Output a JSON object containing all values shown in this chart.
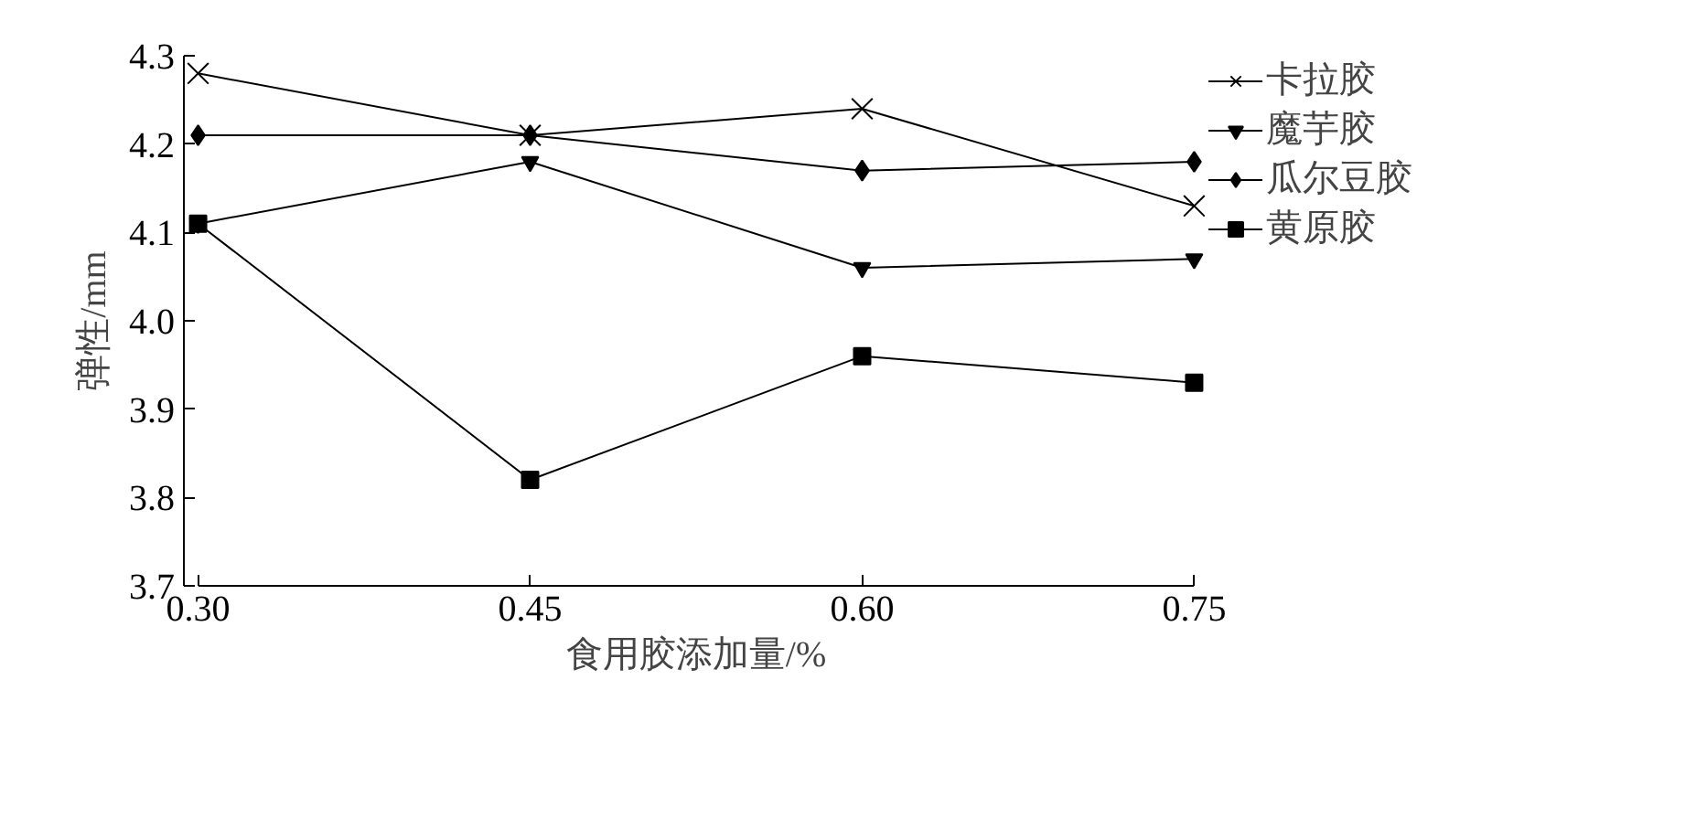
{
  "chart_data": {
    "type": "line",
    "xlabel": "食用胶添加量/%",
    "ylabel": "弹性/mm",
    "x": [
      0.3,
      0.45,
      0.6,
      0.75
    ],
    "xlim": [
      0.3,
      0.75
    ],
    "xticks": [
      {
        "value": 0.3,
        "label": "0.30"
      },
      0.45,
      {
        "value": 0.6,
        "label": "0.60"
      },
      0.75
    ],
    "ylim": [
      3.7,
      4.3
    ],
    "yticks": [
      3.7,
      3.8,
      3.9,
      {
        "value": 4.0,
        "label": "4.0"
      },
      4.1,
      4.2,
      4.3
    ],
    "grid": false,
    "legend": "right",
    "line_style": "solid",
    "series": [
      {
        "name": "卡拉胶",
        "color": "#000000",
        "marker": "cross",
        "values": [
          4.28,
          4.21,
          4.24,
          4.13
        ]
      },
      {
        "name": "魔芋胶",
        "color": "#000000",
        "marker": "triangle",
        "values": [
          4.11,
          4.18,
          4.06,
          4.07
        ]
      },
      {
        "name": "瓜尔豆胶",
        "color": "#000000",
        "marker": "diamond",
        "values": [
          4.21,
          4.21,
          4.17,
          4.18
        ]
      },
      {
        "name": "黄原胶",
        "color": "#000000",
        "marker": "square",
        "values": [
          4.11,
          3.82,
          3.96,
          3.93
        ]
      }
    ]
  }
}
